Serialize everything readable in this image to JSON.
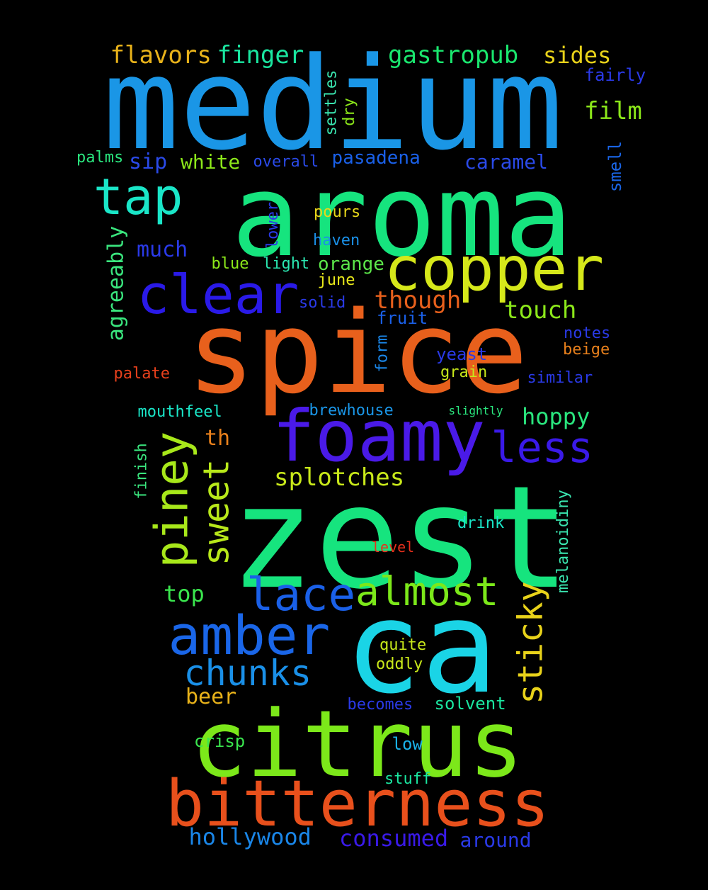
{
  "wordcloud": {
    "words": [
      {
        "text": "medium",
        "color": "#1a96e6",
        "rot": 0
      },
      {
        "text": "aroma",
        "color": "#16e47e",
        "rot": 0
      },
      {
        "text": "spice",
        "color": "#e8601c",
        "rot": 0
      },
      {
        "text": "zest",
        "color": "#16e47e",
        "rot": 0
      },
      {
        "text": "ca",
        "color": "#1ad4e6",
        "rot": 0
      },
      {
        "text": "citrus",
        "color": "#7ce81a",
        "rot": 0
      },
      {
        "text": "foamy",
        "color": "#4a1ae8",
        "rot": 0
      },
      {
        "text": "bitterness",
        "color": "#e8501c",
        "rot": 0
      },
      {
        "text": "copper",
        "color": "#d6e81a",
        "rot": 0
      },
      {
        "text": "clear",
        "color": "#2a1ae8",
        "rot": 0
      },
      {
        "text": "amber",
        "color": "#1a66e8",
        "rot": 0
      },
      {
        "text": "tap",
        "color": "#1ae6c8",
        "rot": 0
      },
      {
        "text": "lace",
        "color": "#1a60e8",
        "rot": 0
      },
      {
        "text": "piney",
        "color": "#a8e81a",
        "rot": -90
      },
      {
        "text": "less",
        "color": "#3a1ae8",
        "rot": 0
      },
      {
        "text": "almost",
        "color": "#7ce81a",
        "rot": 0
      },
      {
        "text": "chunks",
        "color": "#1a90e8",
        "rot": 0
      },
      {
        "text": "sweet",
        "color": "#b8e81a",
        "rot": -90
      },
      {
        "text": "sticky",
        "color": "#e8d21a",
        "rot": -90
      },
      {
        "text": "flavors",
        "color": "#e8b21a",
        "rot": 0
      },
      {
        "text": "finger",
        "color": "#1ae6a0",
        "rot": 0
      },
      {
        "text": "gastropub",
        "color": "#1ae66e",
        "rot": 0
      },
      {
        "text": "sides",
        "color": "#e8d21a",
        "rot": 0
      },
      {
        "text": "fairly",
        "color": "#2a3ae8",
        "rot": 0
      },
      {
        "text": "film",
        "color": "#8ce81a",
        "rot": 0
      },
      {
        "text": "splotches",
        "color": "#c8e81a",
        "rot": 0
      },
      {
        "text": "though",
        "color": "#e8601c",
        "rot": 0
      },
      {
        "text": "touch",
        "color": "#8ce81a",
        "rot": 0
      },
      {
        "text": "hoppy",
        "color": "#2ae67e",
        "rot": 0
      },
      {
        "text": "consumed",
        "color": "#3a1ae8",
        "rot": 0
      },
      {
        "text": "hollywood",
        "color": "#1a86e8",
        "rot": 0
      },
      {
        "text": "around",
        "color": "#2a3ae8",
        "rot": 0
      },
      {
        "text": "agreeably",
        "color": "#3ae67e",
        "rot": -90
      },
      {
        "text": "caramel",
        "color": "#2a4ae8",
        "rot": 0
      },
      {
        "text": "pasadena",
        "color": "#1a60e8",
        "rot": 0
      },
      {
        "text": "sip",
        "color": "#2a4ae8",
        "rot": 0
      },
      {
        "text": "white",
        "color": "#8ce81a",
        "rot": 0
      },
      {
        "text": "overall",
        "color": "#2a4ae8",
        "rot": 0
      },
      {
        "text": "palms",
        "color": "#2ae67e",
        "rot": 0
      },
      {
        "text": "settles",
        "color": "#3ae6b0",
        "rot": -90
      },
      {
        "text": "dry",
        "color": "#8ce81a",
        "rot": -90
      },
      {
        "text": "smell",
        "color": "#1a66e8",
        "rot": -90
      },
      {
        "text": "much",
        "color": "#2a3ae8",
        "rot": 0
      },
      {
        "text": "lower",
        "color": "#2a3ae8",
        "rot": -90
      },
      {
        "text": "pours",
        "color": "#e8d81a",
        "rot": 0
      },
      {
        "text": "haven",
        "color": "#1a90e8",
        "rot": 0
      },
      {
        "text": "blue",
        "color": "#8ce81a",
        "rot": 0
      },
      {
        "text": "light",
        "color": "#2ae6b0",
        "rot": 0
      },
      {
        "text": "orange",
        "color": "#5ce84a",
        "rot": 0
      },
      {
        "text": "june",
        "color": "#e8e81a",
        "rot": 0
      },
      {
        "text": "solid",
        "color": "#2a3ae8",
        "rot": 0
      },
      {
        "text": "fruit",
        "color": "#1a60e8",
        "rot": 0
      },
      {
        "text": "notes",
        "color": "#2a3ae8",
        "rot": 0
      },
      {
        "text": "beige",
        "color": "#e8801c",
        "rot": 0
      },
      {
        "text": "yeast",
        "color": "#2a3ae8",
        "rot": 0
      },
      {
        "text": "grain",
        "color": "#c8e81a",
        "rot": 0
      },
      {
        "text": "similar",
        "color": "#2a3ae8",
        "rot": 0
      },
      {
        "text": "form",
        "color": "#1a86e8",
        "rot": -90
      },
      {
        "text": "palate",
        "color": "#e8401c",
        "rot": 0
      },
      {
        "text": "mouthfeel",
        "color": "#1ae6c8",
        "rot": 0
      },
      {
        "text": "brewhouse",
        "color": "#1a96e8",
        "rot": 0
      },
      {
        "text": "slightly",
        "color": "#2ae67e",
        "rot": 0
      },
      {
        "text": "th",
        "color": "#e8801c",
        "rot": 0
      },
      {
        "text": "finish",
        "color": "#3ae67e",
        "rot": -90
      },
      {
        "text": "melanoidiny",
        "color": "#3ae6b0",
        "rot": -90
      },
      {
        "text": "drink",
        "color": "#1ae6c8",
        "rot": 0
      },
      {
        "text": "level",
        "color": "#e8301c",
        "rot": 0
      },
      {
        "text": "top",
        "color": "#3ae64e",
        "rot": 0
      },
      {
        "text": "quite",
        "color": "#c8e81a",
        "rot": 0
      },
      {
        "text": "oddly",
        "color": "#c8e81a",
        "rot": 0
      },
      {
        "text": "beer",
        "color": "#e8b21a",
        "rot": 0
      },
      {
        "text": "becomes",
        "color": "#2a3ae8",
        "rot": 0
      },
      {
        "text": "solvent",
        "color": "#1ae6a0",
        "rot": 0
      },
      {
        "text": "crisp",
        "color": "#3ae64e",
        "rot": 0
      },
      {
        "text": "low",
        "color": "#1ab2e8",
        "rot": 0
      },
      {
        "text": "stuff",
        "color": "#1ae6a0",
        "rot": 0
      }
    ]
  }
}
